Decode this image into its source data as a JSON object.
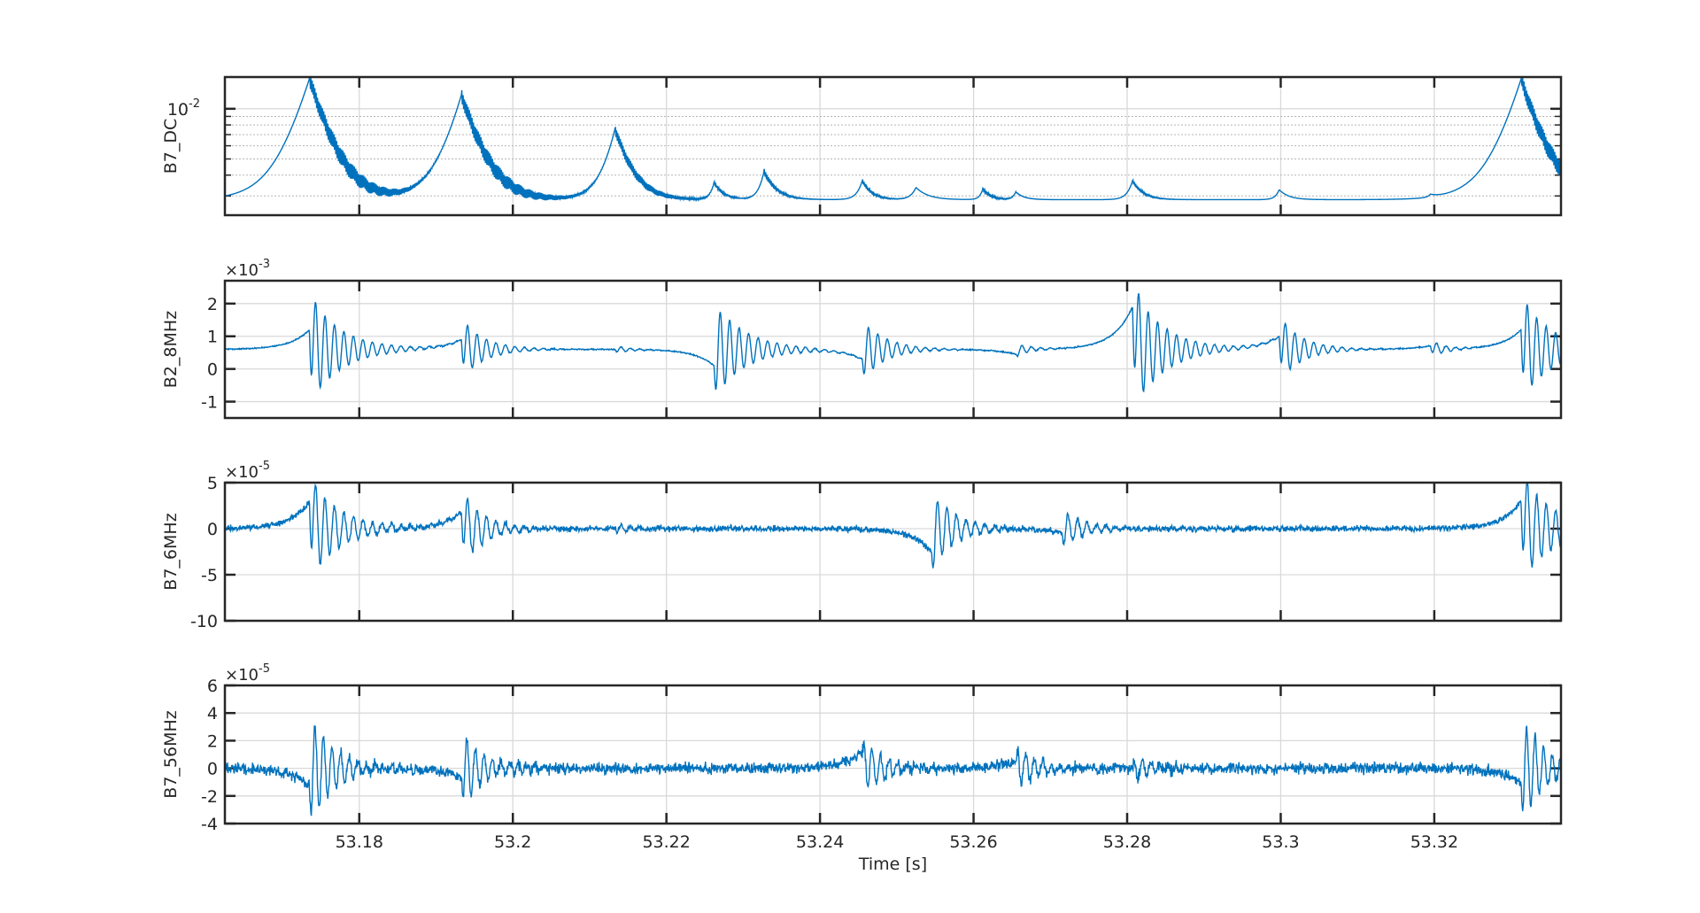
{
  "colors": {
    "line": "#0072BD",
    "axes": "#262626",
    "grid": "#d9d9d9",
    "background": "#ffffff"
  },
  "xaxis": {
    "label": "Time [s]",
    "range": [
      53.1625,
      53.3365
    ],
    "ticks": [
      53.18,
      53.2,
      53.22,
      53.24,
      53.26,
      53.28,
      53.3,
      53.32
    ],
    "tick_labels": [
      "53.18",
      "53.2",
      "53.22",
      "53.24",
      "53.26",
      "53.28",
      "53.3",
      "53.32"
    ]
  },
  "chart_data": [
    {
      "type": "line",
      "ylabel": "B7_DC",
      "yscale": "log",
      "ylim": [
        0.0023,
        0.0155
      ],
      "yticks": [
        0.01
      ],
      "ytick_labels": [
        {
          "base": "10",
          "exp": "-2"
        }
      ],
      "exponent": "",
      "grid": true,
      "series": [
        {
          "baseline": 0.00285,
          "noise": 0.0,
          "events": [
            {
              "t": 53.1735,
              "kind": "peak",
              "amp": 0.01225,
              "width": 0.0025,
              "rise": 0.0075,
              "ring": 0.0015,
              "ring_freq": 1000,
              "ring_decay": 0.005
            },
            {
              "t": 53.1933,
              "kind": "peak",
              "amp": 0.00925,
              "width": 0.0024,
              "rise": 0.0065,
              "ring": 0.0012,
              "ring_freq": 1000,
              "ring_decay": 0.005
            },
            {
              "t": 53.2133,
              "kind": "peak",
              "amp": 0.0047,
              "width": 0.002,
              "rise": 0.0045,
              "ring": 0.0005,
              "ring_freq": 1000,
              "ring_decay": 0.004
            },
            {
              "t": 53.2262,
              "kind": "peak",
              "amp": 0.00075,
              "width": 0.0012,
              "rise": 0.0015,
              "ring": 0.0001,
              "ring_freq": 900,
              "ring_decay": 0.002
            },
            {
              "t": 53.2327,
              "kind": "peak",
              "amp": 0.00135,
              "width": 0.0015,
              "rise": 0.002,
              "ring": 0.0002,
              "ring_freq": 900,
              "ring_decay": 0.002
            },
            {
              "t": 53.2455,
              "kind": "peak",
              "amp": 0.00085,
              "width": 0.0012,
              "rise": 0.002,
              "ring": 0.00012,
              "ring_freq": 900,
              "ring_decay": 0.002
            },
            {
              "t": 53.2525,
              "kind": "peak",
              "amp": 0.00052,
              "width": 0.0015,
              "rise": 0.002,
              "ring": 0.0,
              "ring_freq": 900,
              "ring_decay": 0.002
            },
            {
              "t": 53.2612,
              "kind": "peak",
              "amp": 0.00045,
              "width": 0.001,
              "rise": 0.0012,
              "ring": 0.0001,
              "ring_freq": 900,
              "ring_decay": 0.002
            },
            {
              "t": 53.2655,
              "kind": "peak",
              "amp": 0.00032,
              "width": 0.001,
              "rise": 0.0012,
              "ring": 0.0,
              "ring_freq": 900,
              "ring_decay": 0.002
            },
            {
              "t": 53.2807,
              "kind": "peak",
              "amp": 0.00085,
              "width": 0.0013,
              "rise": 0.002,
              "ring": 0.0001,
              "ring_freq": 900,
              "ring_decay": 0.002
            },
            {
              "t": 53.2998,
              "kind": "peak",
              "amp": 0.00042,
              "width": 0.0012,
              "rise": 0.0015,
              "ring": 0.0,
              "ring_freq": 900,
              "ring_decay": 0.002
            },
            {
              "t": 53.3195,
              "kind": "peak",
              "amp": 0.00012,
              "width": 0.001,
              "rise": 0.001,
              "ring": 0.0,
              "ring_freq": 900,
              "ring_decay": 0.002
            },
            {
              "t": 53.3313,
              "kind": "peak",
              "amp": 0.0122,
              "width": 0.0025,
              "rise": 0.0075,
              "ring": 0.0015,
              "ring_freq": 1000,
              "ring_decay": 0.005
            }
          ]
        }
      ]
    },
    {
      "type": "line",
      "ylabel": "B2_8MHz",
      "yscale": "linear",
      "ylim": [
        -1.5,
        2.7
      ],
      "yticks": [
        -1,
        0,
        1,
        2
      ],
      "ytick_labels": [
        "-1",
        "0",
        "1",
        "2"
      ],
      "exponent": "-3",
      "grid": true,
      "series": [
        {
          "baseline": 0.6,
          "noise": 0.02,
          "events": [
            {
              "t": 53.1735,
              "kind": "burst",
              "pre": 0.6,
              "amp": 1.7,
              "freq": 900,
              "decay": 0.004
            },
            {
              "t": 53.1933,
              "kind": "burst",
              "pre": 0.3,
              "amp": 0.9,
              "freq": 900,
              "decay": 0.003
            },
            {
              "t": 53.2133,
              "kind": "burst",
              "pre": 0.0,
              "amp": 0.12,
              "freq": 900,
              "decay": 0.002
            },
            {
              "t": 53.2262,
              "kind": "burst",
              "pre": -0.5,
              "amp": 1.5,
              "freq": 900,
              "decay": 0.004
            },
            {
              "t": 53.2455,
              "kind": "burst",
              "pre": -0.3,
              "amp": 0.95,
              "freq": 900,
              "decay": 0.003
            },
            {
              "t": 53.2655,
              "kind": "burst",
              "pre": -0.15,
              "amp": 0.2,
              "freq": 900,
              "decay": 0.002
            },
            {
              "t": 53.2807,
              "kind": "burst",
              "pre": 1.3,
              "amp": 1.9,
              "freq": 900,
              "decay": 0.004
            },
            {
              "t": 53.2998,
              "kind": "burst",
              "pre": 0.4,
              "amp": 1.0,
              "freq": 900,
              "decay": 0.003
            },
            {
              "t": 53.3195,
              "kind": "burst",
              "pre": 0.1,
              "amp": 0.25,
              "freq": 900,
              "decay": 0.002
            },
            {
              "t": 53.3313,
              "kind": "burst",
              "pre": 0.6,
              "amp": 1.6,
              "freq": 900,
              "decay": 0.004
            }
          ]
        }
      ]
    },
    {
      "type": "line",
      "ylabel": "B7_6MHz",
      "yscale": "linear",
      "ylim": [
        -10,
        5
      ],
      "yticks": [
        -10,
        -5,
        0,
        5
      ],
      "ytick_labels": [
        "-10",
        "-5",
        "0",
        "5"
      ],
      "exponent": "-5",
      "grid": true,
      "series": [
        {
          "baseline": 0.0,
          "noise": 0.35,
          "events": [
            {
              "t": 53.1735,
              "kind": "burst",
              "pre": 3.0,
              "amp": 5.5,
              "freq": 900,
              "decay": 0.004
            },
            {
              "t": 53.1933,
              "kind": "burst",
              "pre": 1.8,
              "amp": 4.0,
              "freq": 900,
              "decay": 0.003
            },
            {
              "t": 53.2133,
              "kind": "burst",
              "pre": 0.0,
              "amp": 0.5,
              "freq": 900,
              "decay": 0.002
            },
            {
              "t": 53.2545,
              "kind": "burst",
              "pre": -2.5,
              "amp": 4.5,
              "freq": 900,
              "decay": 0.003
            },
            {
              "t": 53.2715,
              "kind": "burst",
              "pre": -0.5,
              "amp": 2.0,
              "freq": 900,
              "decay": 0.003
            },
            {
              "t": 53.3313,
              "kind": "burst",
              "pre": 3.0,
              "amp": 6.0,
              "freq": 900,
              "decay": 0.004
            }
          ]
        }
      ]
    },
    {
      "type": "line",
      "ylabel": "B7_56MHz",
      "yscale": "linear",
      "ylim": [
        -4,
        6
      ],
      "yticks": [
        -4,
        -2,
        0,
        2,
        4,
        6
      ],
      "ytick_labels": [
        "-4",
        "-2",
        "0",
        "2",
        "4",
        "6"
      ],
      "exponent": "-5",
      "grid": true,
      "series": [
        {
          "baseline": 0.0,
          "noise": 0.45,
          "events": [
            {
              "t": 53.1735,
              "kind": "burst",
              "pre": -1.2,
              "amp": 4.3,
              "freq": 1000,
              "decay": 0.003
            },
            {
              "t": 53.1933,
              "kind": "burst",
              "pre": -0.6,
              "amp": 2.8,
              "freq": 1000,
              "decay": 0.003
            },
            {
              "t": 53.2455,
              "kind": "burst",
              "pre": 1.2,
              "amp": -2.0,
              "freq": 1000,
              "decay": 0.003
            },
            {
              "t": 53.2655,
              "kind": "burst",
              "pre": 0.5,
              "amp": -1.5,
              "freq": 1000,
              "decay": 0.003
            },
            {
              "t": 53.2807,
              "kind": "burst",
              "pre": 0.0,
              "amp": -1.2,
              "freq": 1000,
              "decay": 0.002
            },
            {
              "t": 53.3313,
              "kind": "burst",
              "pre": -1.2,
              "amp": 4.0,
              "freq": 1000,
              "decay": 0.003
            }
          ]
        }
      ]
    }
  ]
}
